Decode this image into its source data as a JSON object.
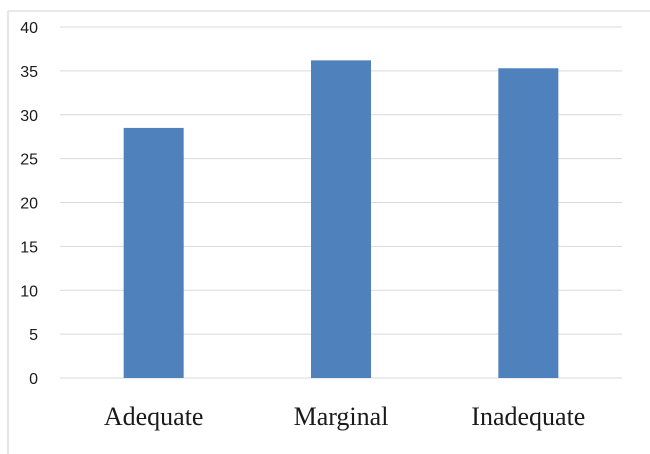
{
  "chart_data": {
    "type": "bar",
    "categories": [
      "Adequate",
      "Marginal",
      "Inadequate"
    ],
    "values": [
      28.5,
      36.2,
      35.3
    ],
    "ylim": [
      0,
      40
    ],
    "yticks": [
      0,
      5,
      10,
      15,
      20,
      25,
      30,
      35,
      40
    ],
    "grid": true,
    "legend": "none",
    "bar_color": "#4f81bd",
    "grid_color": "#d9d9d9"
  }
}
